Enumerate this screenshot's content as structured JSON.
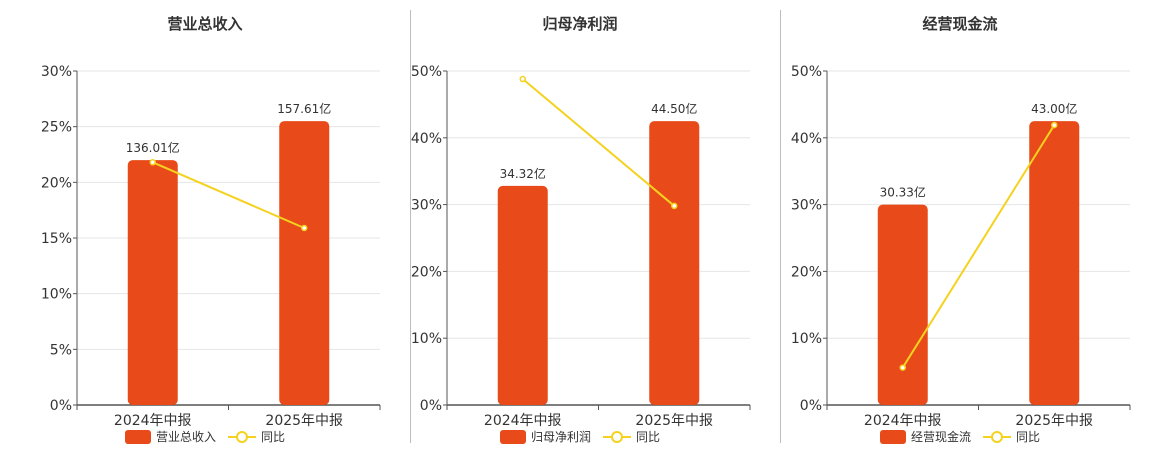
{
  "colors": {
    "bar": "#e84b19",
    "line": "#f4d21f",
    "axis": "#555555",
    "grid": "#e6e6e6"
  },
  "chart_data": [
    {
      "type": "bar",
      "title": "营业总收入",
      "categories": [
        "2024年中报",
        "2025年中报"
      ],
      "ylim": [
        0,
        30
      ],
      "ytick_step": 5,
      "yticks": [
        "0%",
        "5%",
        "10%",
        "15%",
        "20%",
        "25%",
        "30%"
      ],
      "series": [
        {
          "name": "营业总收入",
          "kind": "bar",
          "values": [
            22.0,
            25.5
          ],
          "labels": [
            "136.01亿",
            "157.61亿"
          ]
        },
        {
          "name": "同比",
          "kind": "line",
          "values": [
            21.8,
            15.9
          ]
        }
      ],
      "legend": "bottom",
      "grid": true
    },
    {
      "type": "bar",
      "title": "归母净利润",
      "categories": [
        "2024年中报",
        "2025年中报"
      ],
      "ylim": [
        0,
        50
      ],
      "ytick_step": 10,
      "yticks": [
        "0%",
        "10%",
        "20%",
        "30%",
        "40%",
        "50%"
      ],
      "series": [
        {
          "name": "归母净利润",
          "kind": "bar",
          "values": [
            32.8,
            42.5
          ],
          "labels": [
            "34.32亿",
            "44.50亿"
          ]
        },
        {
          "name": "同比",
          "kind": "line",
          "values": [
            48.8,
            29.8
          ]
        }
      ],
      "legend": "bottom",
      "grid": true
    },
    {
      "type": "bar",
      "title": "经营现金流",
      "categories": [
        "2024年中报",
        "2025年中报"
      ],
      "ylim": [
        0,
        50
      ],
      "ytick_step": 10,
      "yticks": [
        "0%",
        "10%",
        "20%",
        "30%",
        "40%",
        "50%"
      ],
      "series": [
        {
          "name": "经营现金流",
          "kind": "bar",
          "values": [
            30.0,
            42.5
          ],
          "labels": [
            "30.33亿",
            "43.00亿"
          ]
        },
        {
          "name": "同比",
          "kind": "line",
          "values": [
            5.6,
            41.9
          ]
        }
      ],
      "legend": "bottom",
      "grid": true
    }
  ]
}
